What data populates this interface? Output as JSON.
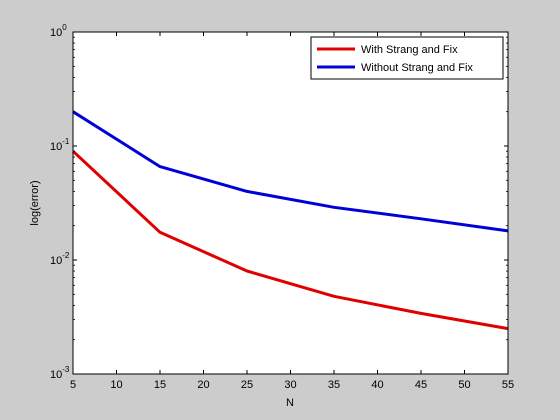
{
  "chart_data": {
    "type": "line",
    "title": "",
    "xlabel": "N",
    "ylabel": "log(error)",
    "x": [
      5,
      15,
      25,
      35,
      45,
      55
    ],
    "xlim": [
      5,
      55
    ],
    "ylim": [
      0.001,
      1
    ],
    "yscale": "log",
    "x_ticks": [
      5,
      10,
      15,
      20,
      25,
      30,
      35,
      40,
      45,
      50,
      55
    ],
    "y_ticks": [
      {
        "value": 0.001,
        "base": "10",
        "exp": "-3"
      },
      {
        "value": 0.01,
        "base": "10",
        "exp": "-2"
      },
      {
        "value": 0.1,
        "base": "10",
        "exp": "-1"
      },
      {
        "value": 1,
        "base": "10",
        "exp": "0"
      }
    ],
    "grid": false,
    "legend_position": "top-right",
    "series": [
      {
        "name": "With Strang and Fix",
        "color": "#e00000",
        "values": [
          0.09,
          0.0175,
          0.008,
          0.0048,
          0.0034,
          0.0025
        ]
      },
      {
        "name": "Without Strang and Fix",
        "color": "#0000d8",
        "values": [
          0.2,
          0.066,
          0.04,
          0.029,
          0.023,
          0.018
        ]
      }
    ]
  }
}
